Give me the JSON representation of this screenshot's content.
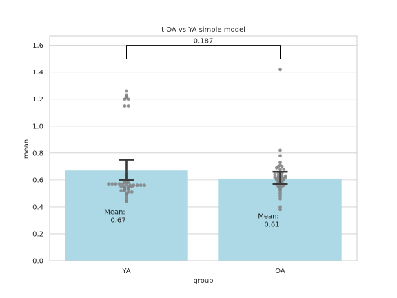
{
  "chart_data": {
    "type": "bar",
    "title": "t OA vs YA simple model",
    "xlabel": "group",
    "ylabel": "mean",
    "categories": [
      "YA",
      "OA"
    ],
    "values": [
      0.67,
      0.61
    ],
    "ylim": [
      0,
      1.67
    ],
    "yticks": [
      0.0,
      0.2,
      0.4,
      0.6,
      0.8,
      1.0,
      1.2,
      1.4,
      1.6
    ],
    "ytick_labels": [
      "0.0",
      "0.2",
      "0.4",
      "0.6",
      "0.8",
      "1.0",
      "1.2",
      "1.4",
      "1.6"
    ],
    "grid": true,
    "error_bars": [
      {
        "category": "YA",
        "low": 0.6,
        "high": 0.75
      },
      {
        "category": "OA",
        "low": 0.57,
        "high": 0.66
      }
    ],
    "bar_labels": [
      {
        "category": "YA",
        "line1": "Mean:",
        "line2": "0.67"
      },
      {
        "category": "OA",
        "line1": "Mean:",
        "line2": "0.61"
      }
    ],
    "significance": {
      "from": "YA",
      "to": "OA",
      "y": 1.6,
      "drop_to": 1.5,
      "label": "0.187"
    },
    "points": [
      {
        "category": "YA",
        "values": [
          1.26,
          1.23,
          1.22,
          1.21,
          1.2,
          1.2,
          1.15,
          1.15,
          0.64,
          0.62,
          0.61,
          0.59,
          0.58,
          0.58,
          0.57,
          0.57,
          0.57,
          0.57,
          0.57,
          0.57,
          0.56,
          0.56,
          0.56,
          0.56,
          0.56,
          0.55,
          0.55,
          0.55,
          0.55,
          0.54,
          0.54,
          0.53,
          0.53,
          0.52,
          0.52,
          0.51,
          0.51,
          0.5,
          0.49,
          0.47,
          0.45,
          0.44
        ]
      },
      {
        "category": "OA",
        "values": [
          1.42,
          0.82,
          0.78,
          0.73,
          0.71,
          0.7,
          0.7,
          0.69,
          0.68,
          0.68,
          0.66,
          0.65,
          0.65,
          0.64,
          0.63,
          0.63,
          0.63,
          0.62,
          0.62,
          0.62,
          0.62,
          0.61,
          0.61,
          0.61,
          0.6,
          0.6,
          0.6,
          0.59,
          0.59,
          0.58,
          0.58,
          0.57,
          0.56,
          0.56,
          0.55,
          0.55,
          0.54,
          0.53,
          0.52,
          0.5,
          0.48,
          0.46,
          0.4,
          0.38
        ]
      }
    ],
    "colors": {
      "bar": "#add8e6",
      "point": "#808080",
      "errorbar": "#3a3a3a",
      "grid": "#cccccc",
      "frame": "#cccccc",
      "bracket": "#000000"
    }
  }
}
